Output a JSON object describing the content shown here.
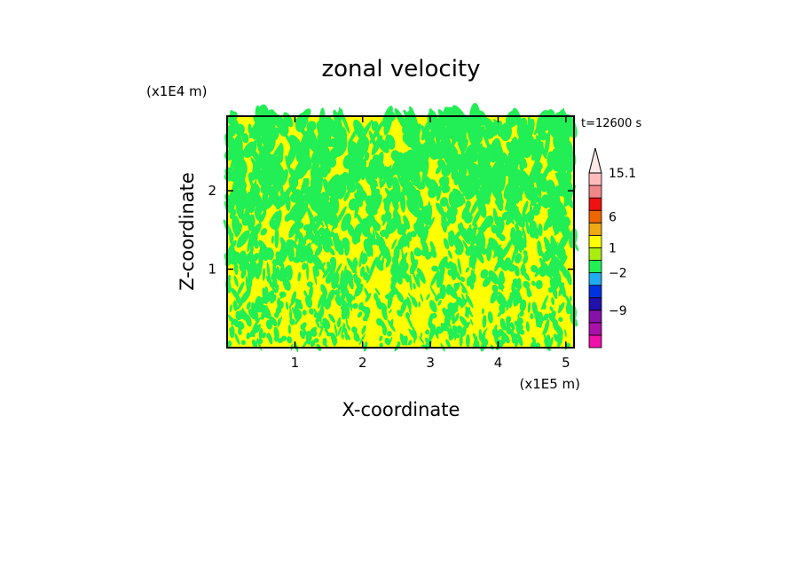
{
  "chart_data": {
    "type": "heatmap",
    "title": "zonal velocity",
    "xlabel": "X-coordinate",
    "ylabel": "Z-coordinate",
    "x_scale_label": "(x1E5 m)",
    "y_scale_label": "(x1E4 m)",
    "time_label": "t=12600 s",
    "xlim": [
      0,
      5.12
    ],
    "ylim": [
      0,
      2.95
    ],
    "x_ticks": [
      {
        "value": 1,
        "label": "1"
      },
      {
        "value": 2,
        "label": "2"
      },
      {
        "value": 3,
        "label": "3"
      },
      {
        "value": 4,
        "label": "4"
      },
      {
        "value": 5,
        "label": "5"
      }
    ],
    "y_ticks": [
      {
        "value": 1,
        "label": "1"
      },
      {
        "value": 2,
        "label": "2"
      }
    ],
    "field_colors": [
      "#ffff00",
      "#22ee55"
    ],
    "colorbar": {
      "levels": [
        {
          "color": "#ee11aa"
        },
        {
          "color": "#aa11aa"
        },
        {
          "color": "#8811aa"
        },
        {
          "color": "#2211aa"
        },
        {
          "color": "#0033dd"
        },
        {
          "color": "#22aaee"
        },
        {
          "color": "#22ee55"
        },
        {
          "color": "#aaee11"
        },
        {
          "color": "#ffff00"
        },
        {
          "color": "#eeaa11"
        },
        {
          "color": "#ee6600"
        },
        {
          "color": "#ee1111"
        },
        {
          "color": "#ee8888"
        },
        {
          "color": "#ffbbbb"
        }
      ],
      "overflow_color": "#ffe8e8",
      "labels": [
        {
          "text": "15.1",
          "at_boundary": 14
        },
        {
          "text": "6",
          "at_boundary": 10.5
        },
        {
          "text": "1",
          "at_boundary": 8
        },
        {
          "text": "−2",
          "at_boundary": 6
        },
        {
          "text": "−9",
          "at_boundary": 3
        }
      ]
    }
  }
}
